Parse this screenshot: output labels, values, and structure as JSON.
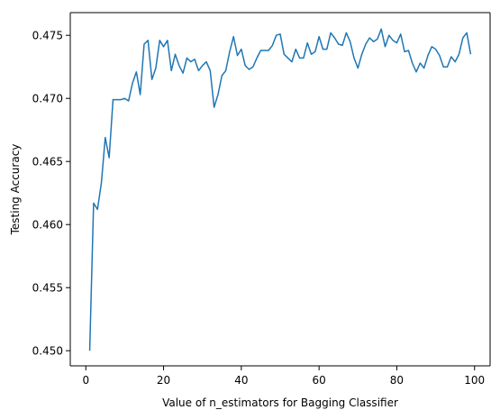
{
  "chart_data": {
    "type": "line",
    "title": "",
    "xlabel": "Value of n_estimators for Bagging Classifier",
    "ylabel": "Testing Accuracy",
    "xlim": [
      -4,
      104
    ],
    "ylim": [
      0.4488,
      0.4768
    ],
    "xticks": [
      0,
      20,
      40,
      60,
      80,
      100
    ],
    "yticks": [
      0.45,
      0.455,
      0.46,
      0.465,
      0.47,
      0.475
    ],
    "ytick_labels": [
      "0.450",
      "0.455",
      "0.460",
      "0.465",
      "0.470",
      "0.475"
    ],
    "grid": false,
    "legend": "none",
    "series": [
      {
        "color": "#1f77b4",
        "x": [
          1,
          2,
          3,
          4,
          5,
          6,
          7,
          8,
          9,
          10,
          11,
          12,
          13,
          14,
          15,
          16,
          17,
          18,
          19,
          20,
          21,
          22,
          23,
          24,
          25,
          26,
          27,
          28,
          29,
          30,
          31,
          32,
          33,
          34,
          35,
          36,
          37,
          38,
          39,
          40,
          41,
          42,
          43,
          44,
          45,
          46,
          47,
          48,
          49,
          50,
          51,
          52,
          53,
          54,
          55,
          56,
          57,
          58,
          59,
          60,
          61,
          62,
          63,
          64,
          65,
          66,
          67,
          68,
          69,
          70,
          71,
          72,
          73,
          74,
          75,
          76,
          77,
          78,
          79,
          80,
          81,
          82,
          83,
          84,
          85,
          86,
          87,
          88,
          89,
          90,
          91,
          92,
          93,
          94,
          95,
          96,
          97,
          98,
          99
        ],
        "y": [
          0.45,
          0.4617,
          0.4612,
          0.4633,
          0.4669,
          0.4653,
          0.4699,
          0.4699,
          0.4699,
          0.47,
          0.4698,
          0.4712,
          0.4721,
          0.4703,
          0.4743,
          0.4746,
          0.4715,
          0.4724,
          0.4746,
          0.4741,
          0.4746,
          0.4722,
          0.4735,
          0.4726,
          0.472,
          0.4732,
          0.4729,
          0.4731,
          0.4722,
          0.4726,
          0.4729,
          0.4722,
          0.4693,
          0.4703,
          0.4718,
          0.4722,
          0.4737,
          0.4749,
          0.4734,
          0.4739,
          0.4726,
          0.4723,
          0.4725,
          0.4732,
          0.4738,
          0.4738,
          0.4738,
          0.4742,
          0.475,
          0.4751,
          0.4735,
          0.4732,
          0.4729,
          0.4739,
          0.4732,
          0.4732,
          0.4744,
          0.4735,
          0.4737,
          0.4749,
          0.4739,
          0.4739,
          0.4752,
          0.4748,
          0.4743,
          0.4742,
          0.4752,
          0.4745,
          0.4732,
          0.4724,
          0.4735,
          0.4743,
          0.4748,
          0.4745,
          0.4747,
          0.4755,
          0.4741,
          0.475,
          0.4746,
          0.4744,
          0.4751,
          0.4737,
          0.4738,
          0.4728,
          0.4721,
          0.4728,
          0.4724,
          0.4734,
          0.4741,
          0.4739,
          0.4734,
          0.4725,
          0.4725,
          0.4733,
          0.4729,
          0.4735,
          0.4748,
          0.4752,
          0.4735
        ]
      }
    ]
  }
}
